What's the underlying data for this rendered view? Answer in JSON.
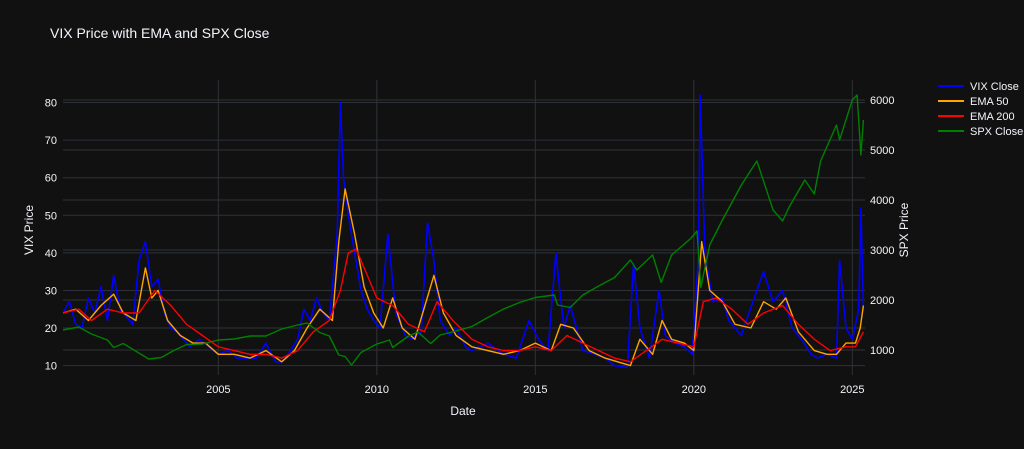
{
  "chart_data": {
    "type": "line",
    "title": "VIX Price with EMA and SPX Close",
    "xlabel": "Date",
    "ylabel_left": "VIX Price",
    "ylabel_right": "SPX Price",
    "x_ticks": [
      "2005",
      "2010",
      "2015",
      "2020",
      "2025"
    ],
    "x_tick_years": [
      2005,
      2010,
      2015,
      2020,
      2025
    ],
    "xlim": [
      2000.1,
      2025.4
    ],
    "y_left_ticks": [
      10,
      20,
      30,
      40,
      50,
      60,
      70,
      80
    ],
    "ylim_left": [
      7.5,
      86
    ],
    "y_right_ticks": [
      1000,
      2000,
      3000,
      4000,
      5000,
      6000
    ],
    "ylim_right": [
      500,
      6400
    ],
    "grid": true,
    "legend_position": "top-right",
    "colors": {
      "background": "#111111",
      "grid": "#2e3238",
      "text": "#f2f5fa",
      "vix": "#0000ff",
      "ema50": "#ffa500",
      "ema200": "#ff0000",
      "spx": "#008000"
    },
    "series": [
      {
        "name": "VIX Close",
        "axis": "left",
        "color": "#0000ff",
        "points": [
          [
            2000.1,
            24
          ],
          [
            2000.3,
            27
          ],
          [
            2000.5,
            21
          ],
          [
            2000.7,
            20
          ],
          [
            2000.9,
            28
          ],
          [
            2001.1,
            24
          ],
          [
            2001.3,
            31
          ],
          [
            2001.5,
            22
          ],
          [
            2001.7,
            34
          ],
          [
            2001.9,
            25
          ],
          [
            2002.1,
            23
          ],
          [
            2002.3,
            21
          ],
          [
            2002.5,
            38
          ],
          [
            2002.7,
            43
          ],
          [
            2002.9,
            31
          ],
          [
            2003.1,
            33
          ],
          [
            2003.3,
            24
          ],
          [
            2003.5,
            20
          ],
          [
            2003.7,
            19
          ],
          [
            2003.9,
            17
          ],
          [
            2004.1,
            15
          ],
          [
            2004.4,
            17
          ],
          [
            2004.7,
            15
          ],
          [
            2005.0,
            13
          ],
          [
            2005.3,
            14
          ],
          [
            2005.6,
            12
          ],
          [
            2005.9,
            12
          ],
          [
            2006.2,
            12
          ],
          [
            2006.5,
            16
          ],
          [
            2006.8,
            11
          ],
          [
            2007.0,
            11
          ],
          [
            2007.2,
            13
          ],
          [
            2007.5,
            17
          ],
          [
            2007.7,
            25
          ],
          [
            2007.9,
            22
          ],
          [
            2008.1,
            28
          ],
          [
            2008.3,
            24
          ],
          [
            2008.5,
            22
          ],
          [
            2008.75,
            45
          ],
          [
            2008.85,
            80
          ],
          [
            2008.95,
            60
          ],
          [
            2009.1,
            50
          ],
          [
            2009.3,
            40
          ],
          [
            2009.5,
            30
          ],
          [
            2009.7,
            25
          ],
          [
            2009.9,
            22
          ],
          [
            2010.1,
            20
          ],
          [
            2010.35,
            45
          ],
          [
            2010.6,
            24
          ],
          [
            2010.9,
            18
          ],
          [
            2011.1,
            17
          ],
          [
            2011.4,
            19
          ],
          [
            2011.6,
            48
          ],
          [
            2011.8,
            38
          ],
          [
            2012.0,
            22
          ],
          [
            2012.3,
            18
          ],
          [
            2012.5,
            20
          ],
          [
            2012.8,
            15
          ],
          [
            2013.0,
            14
          ],
          [
            2013.5,
            16
          ],
          [
            2014.0,
            13
          ],
          [
            2014.4,
            12
          ],
          [
            2014.8,
            22
          ],
          [
            2015.1,
            17
          ],
          [
            2015.4,
            14
          ],
          [
            2015.65,
            40
          ],
          [
            2015.9,
            20
          ],
          [
            2016.1,
            26
          ],
          [
            2016.5,
            14
          ],
          [
            2016.9,
            13
          ],
          [
            2017.2,
            12
          ],
          [
            2017.5,
            10
          ],
          [
            2017.9,
            9.5
          ],
          [
            2018.1,
            37
          ],
          [
            2018.3,
            20
          ],
          [
            2018.6,
            12
          ],
          [
            2018.9,
            30
          ],
          [
            2019.1,
            18
          ],
          [
            2019.4,
            16
          ],
          [
            2019.7,
            15
          ],
          [
            2019.95,
            13
          ],
          [
            2020.15,
            40
          ],
          [
            2020.2,
            82
          ],
          [
            2020.35,
            40
          ],
          [
            2020.6,
            27
          ],
          [
            2020.9,
            28
          ],
          [
            2021.1,
            22
          ],
          [
            2021.5,
            18
          ],
          [
            2021.9,
            28
          ],
          [
            2022.2,
            35
          ],
          [
            2022.5,
            27
          ],
          [
            2022.8,
            30
          ],
          [
            2023.1,
            20
          ],
          [
            2023.4,
            17
          ],
          [
            2023.7,
            13
          ],
          [
            2023.9,
            12
          ],
          [
            2024.2,
            13
          ],
          [
            2024.5,
            12
          ],
          [
            2024.6,
            38
          ],
          [
            2024.8,
            20
          ],
          [
            2025.0,
            17
          ],
          [
            2025.2,
            25
          ],
          [
            2025.27,
            52
          ],
          [
            2025.35,
            25
          ]
        ]
      },
      {
        "name": "EMA 50",
        "axis": "left",
        "color": "#ffa500",
        "points": [
          [
            2000.1,
            24
          ],
          [
            2000.5,
            25
          ],
          [
            2000.9,
            22
          ],
          [
            2001.3,
            26
          ],
          [
            2001.7,
            29
          ],
          [
            2002.0,
            24
          ],
          [
            2002.4,
            22
          ],
          [
            2002.7,
            36
          ],
          [
            2002.9,
            28
          ],
          [
            2003.1,
            30
          ],
          [
            2003.4,
            22
          ],
          [
            2003.8,
            18
          ],
          [
            2004.2,
            16
          ],
          [
            2004.6,
            16
          ],
          [
            2005.0,
            13
          ],
          [
            2005.5,
            13
          ],
          [
            2006.0,
            12
          ],
          [
            2006.5,
            14
          ],
          [
            2007.0,
            11
          ],
          [
            2007.4,
            14
          ],
          [
            2007.8,
            20
          ],
          [
            2008.2,
            25
          ],
          [
            2008.6,
            22
          ],
          [
            2008.8,
            43
          ],
          [
            2009.0,
            57
          ],
          [
            2009.3,
            45
          ],
          [
            2009.6,
            31
          ],
          [
            2009.9,
            24
          ],
          [
            2010.2,
            20
          ],
          [
            2010.5,
            28
          ],
          [
            2010.8,
            20
          ],
          [
            2011.2,
            17
          ],
          [
            2011.8,
            34
          ],
          [
            2012.1,
            24
          ],
          [
            2012.5,
            18
          ],
          [
            2013.0,
            15
          ],
          [
            2013.5,
            14
          ],
          [
            2014.0,
            13
          ],
          [
            2014.5,
            14
          ],
          [
            2015.0,
            16
          ],
          [
            2015.5,
            14
          ],
          [
            2015.8,
            21
          ],
          [
            2016.2,
            20
          ],
          [
            2016.7,
            14
          ],
          [
            2017.2,
            12
          ],
          [
            2017.6,
            11
          ],
          [
            2018.0,
            10
          ],
          [
            2018.3,
            17
          ],
          [
            2018.7,
            13
          ],
          [
            2019.0,
            22
          ],
          [
            2019.3,
            17
          ],
          [
            2019.7,
            16
          ],
          [
            2020.0,
            14
          ],
          [
            2020.25,
            43
          ],
          [
            2020.5,
            30
          ],
          [
            2020.9,
            27
          ],
          [
            2021.3,
            21
          ],
          [
            2021.8,
            20
          ],
          [
            2022.2,
            27
          ],
          [
            2022.6,
            25
          ],
          [
            2022.9,
            28
          ],
          [
            2023.3,
            19
          ],
          [
            2023.8,
            14
          ],
          [
            2024.2,
            13
          ],
          [
            2024.5,
            13
          ],
          [
            2024.8,
            16
          ],
          [
            2025.1,
            16
          ],
          [
            2025.25,
            20
          ],
          [
            2025.35,
            26
          ]
        ]
      },
      {
        "name": "EMA 200",
        "axis": "left",
        "color": "#ff0000",
        "points": [
          [
            2000.1,
            24
          ],
          [
            2000.6,
            25
          ],
          [
            2001.0,
            22
          ],
          [
            2001.5,
            25
          ],
          [
            2002.0,
            24
          ],
          [
            2002.5,
            24
          ],
          [
            2003.0,
            30
          ],
          [
            2003.5,
            26
          ],
          [
            2004.0,
            21
          ],
          [
            2004.5,
            18
          ],
          [
            2005.0,
            15
          ],
          [
            2005.5,
            14
          ],
          [
            2006.0,
            13
          ],
          [
            2006.5,
            13
          ],
          [
            2007.0,
            12
          ],
          [
            2007.5,
            14
          ],
          [
            2008.0,
            19
          ],
          [
            2008.5,
            22
          ],
          [
            2008.85,
            30
          ],
          [
            2009.1,
            40
          ],
          [
            2009.35,
            41
          ],
          [
            2009.7,
            34
          ],
          [
            2010.0,
            28
          ],
          [
            2010.5,
            26
          ],
          [
            2011.0,
            21
          ],
          [
            2011.5,
            19
          ],
          [
            2011.9,
            27
          ],
          [
            2012.4,
            22
          ],
          [
            2013.0,
            17
          ],
          [
            2013.5,
            15
          ],
          [
            2014.0,
            14
          ],
          [
            2014.5,
            14
          ],
          [
            2015.0,
            15
          ],
          [
            2015.5,
            14
          ],
          [
            2016.0,
            18
          ],
          [
            2016.5,
            16
          ],
          [
            2017.0,
            14
          ],
          [
            2017.5,
            12
          ],
          [
            2018.0,
            11
          ],
          [
            2018.5,
            14
          ],
          [
            2019.0,
            17
          ],
          [
            2019.5,
            16
          ],
          [
            2020.0,
            15
          ],
          [
            2020.3,
            27
          ],
          [
            2020.7,
            28
          ],
          [
            2021.2,
            25
          ],
          [
            2021.7,
            21
          ],
          [
            2022.2,
            24
          ],
          [
            2022.8,
            26
          ],
          [
            2023.3,
            21
          ],
          [
            2023.8,
            17
          ],
          [
            2024.3,
            14
          ],
          [
            2024.8,
            15
          ],
          [
            2025.1,
            15
          ],
          [
            2025.35,
            19
          ]
        ]
      },
      {
        "name": "SPX Close",
        "axis": "right",
        "color": "#008000",
        "points": [
          [
            2000.1,
            1400
          ],
          [
            2000.6,
            1460
          ],
          [
            2001.0,
            1320
          ],
          [
            2001.5,
            1200
          ],
          [
            2001.7,
            1050
          ],
          [
            2002.0,
            1130
          ],
          [
            2002.6,
            900
          ],
          [
            2002.8,
            820
          ],
          [
            2003.2,
            850
          ],
          [
            2003.6,
            990
          ],
          [
            2004.0,
            1110
          ],
          [
            2004.5,
            1120
          ],
          [
            2005.0,
            1200
          ],
          [
            2005.5,
            1220
          ],
          [
            2006.0,
            1280
          ],
          [
            2006.5,
            1280
          ],
          [
            2007.0,
            1420
          ],
          [
            2007.5,
            1500
          ],
          [
            2007.8,
            1540
          ],
          [
            2008.2,
            1350
          ],
          [
            2008.5,
            1280
          ],
          [
            2008.8,
            900
          ],
          [
            2009.0,
            870
          ],
          [
            2009.2,
            700
          ],
          [
            2009.5,
            950
          ],
          [
            2010.0,
            1120
          ],
          [
            2010.4,
            1200
          ],
          [
            2010.5,
            1050
          ],
          [
            2011.0,
            1280
          ],
          [
            2011.3,
            1360
          ],
          [
            2011.7,
            1130
          ],
          [
            2012.0,
            1300
          ],
          [
            2012.5,
            1380
          ],
          [
            2013.0,
            1470
          ],
          [
            2013.5,
            1650
          ],
          [
            2014.0,
            1820
          ],
          [
            2014.5,
            1950
          ],
          [
            2015.0,
            2050
          ],
          [
            2015.6,
            2100
          ],
          [
            2015.7,
            1900
          ],
          [
            2016.1,
            1850
          ],
          [
            2016.5,
            2100
          ],
          [
            2017.0,
            2280
          ],
          [
            2017.5,
            2450
          ],
          [
            2018.0,
            2800
          ],
          [
            2018.2,
            2600
          ],
          [
            2018.7,
            2900
          ],
          [
            2018.97,
            2350
          ],
          [
            2019.3,
            2900
          ],
          [
            2019.9,
            3230
          ],
          [
            2020.1,
            3380
          ],
          [
            2020.22,
            2250
          ],
          [
            2020.5,
            3100
          ],
          [
            2020.9,
            3600
          ],
          [
            2021.5,
            4300
          ],
          [
            2021.99,
            4780
          ],
          [
            2022.5,
            3800
          ],
          [
            2022.8,
            3580
          ],
          [
            2023.0,
            3850
          ],
          [
            2023.5,
            4400
          ],
          [
            2023.8,
            4120
          ],
          [
            2024.0,
            4780
          ],
          [
            2024.5,
            5500
          ],
          [
            2024.6,
            5200
          ],
          [
            2025.0,
            6000
          ],
          [
            2025.15,
            6100
          ],
          [
            2025.27,
            4900
          ],
          [
            2025.35,
            5600
          ]
        ]
      }
    ]
  }
}
